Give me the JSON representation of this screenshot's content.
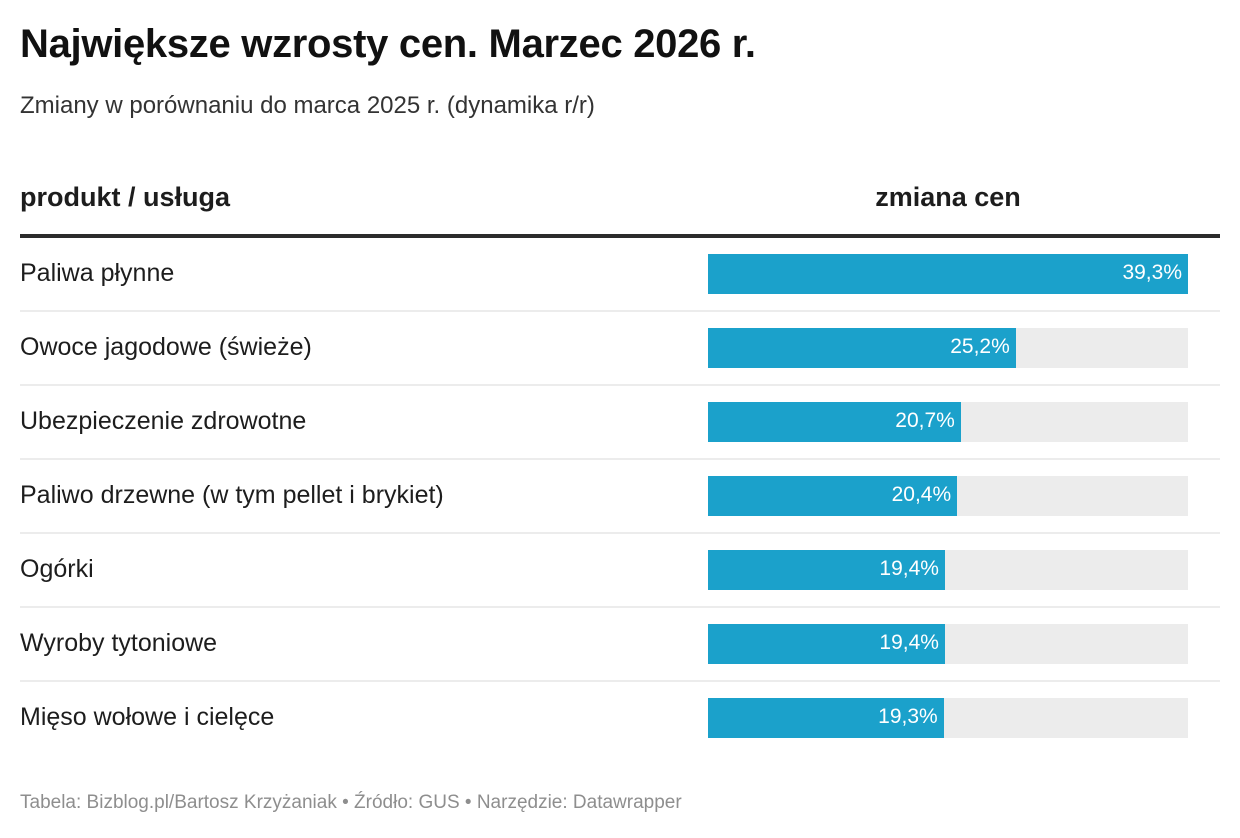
{
  "header": {
    "title": "Największe wzrosty cen. Marzec 2026 r.",
    "subtitle": "Zmiany w porównaniu do marca 2025 r. (dynamika r/r)"
  },
  "table": {
    "columns": [
      "produkt / usługa",
      "zmiana cen"
    ]
  },
  "colors": {
    "bar": "#1ba1cb",
    "bar_track": "#ececec",
    "bar_label": "#ffffff"
  },
  "footer": {
    "credit": "Tabela: Bizblog.pl/Bartosz Krzyżaniak • Źródło: GUS • Narzędzie: Datawrapper"
  },
  "chart_data": {
    "type": "table",
    "title": "Największe wzrosty cen. Marzec 2026 r.",
    "subtitle": "Zmiany w porównaniu do marca 2025 r. (dynamika r/r)",
    "columns": [
      "produkt / usługa",
      "zmiana cen"
    ],
    "bar_max": 39.3,
    "unit": "%",
    "rows": [
      {
        "label": "Paliwa płynne",
        "value": 39.3,
        "value_label": "39,3%"
      },
      {
        "label": "Owoce jagodowe (świeże)",
        "value": 25.2,
        "value_label": "25,2%"
      },
      {
        "label": "Ubezpieczenie zdrowotne",
        "value": 20.7,
        "value_label": "20,7%"
      },
      {
        "label": "Paliwo drzewne (w tym pellet i brykiet)",
        "value": 20.4,
        "value_label": "20,4%"
      },
      {
        "label": "Ogórki",
        "value": 19.4,
        "value_label": "19,4%"
      },
      {
        "label": "Wyroby tytoniowe",
        "value": 19.4,
        "value_label": "19,4%"
      },
      {
        "label": "Mięso wołowe i cielęce",
        "value": 19.3,
        "value_label": "19,3%"
      }
    ],
    "source": "GUS"
  }
}
